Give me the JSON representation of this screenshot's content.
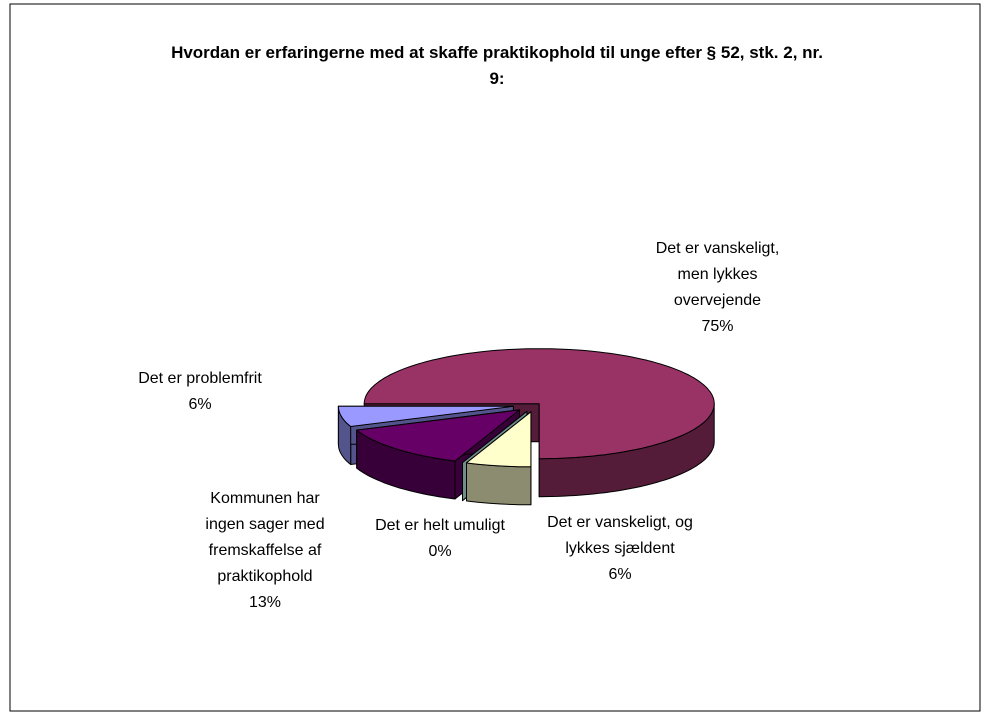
{
  "chart_data": {
    "type": "pie3d",
    "title": "Hvordan er erfaringerne med at skaffe praktikophold til unge efter § 52, stk. 2, nr. 9:",
    "categories": [
      "Det er problemfrit",
      "Det er vanskeligt, men lykkes overvejende",
      "Det er vanskeligt, og lykkes sjældent",
      "Det er helt umuligt",
      "Kommunen har ingen sager med fremskaffelse af praktikophold"
    ],
    "values": [
      6,
      75,
      6,
      0,
      13
    ],
    "value_labels": [
      "6%",
      "75%",
      "6%",
      "0%",
      "13%"
    ],
    "colors": [
      "#9999ff",
      "#993366",
      "#ffffcc",
      "#ccffff",
      "#660066"
    ]
  }
}
